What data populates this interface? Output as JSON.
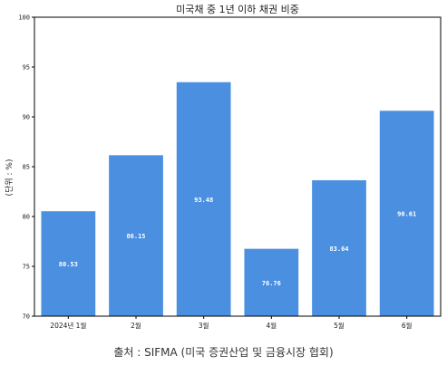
{
  "chart_data": {
    "type": "bar",
    "title": "미국채 중 1년 이하 채권 비중",
    "ylabel": "(단위 : %)",
    "xlabel": "",
    "categories": [
      "2024년 1월",
      "2월",
      "3월",
      "4월",
      "5월",
      "6월"
    ],
    "values": [
      80.53,
      86.15,
      93.48,
      76.76,
      83.64,
      90.61
    ],
    "data_labels": [
      "80.53",
      "86.15",
      "93.48",
      "76.76",
      "83.64",
      "90.61"
    ],
    "ylim": [
      70,
      100
    ],
    "yticks": [
      70,
      75,
      80,
      85,
      90,
      95,
      100
    ],
    "bar_color": "#4a8fe0",
    "grid": false,
    "legend": "none"
  },
  "source": "출처 : SIFMA (미국 증권산업 및 금융시장 협회)"
}
